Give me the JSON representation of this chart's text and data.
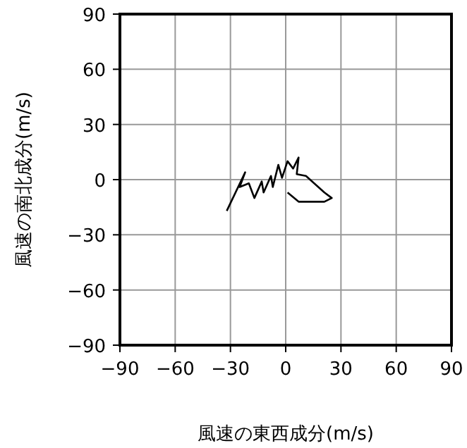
{
  "chart_data": {
    "type": "line",
    "xlabel": "風速の東西成分(m/s)",
    "ylabel": "風速の南北成分(m/s)",
    "xlim": [
      -90,
      90
    ],
    "ylim": [
      -90,
      90
    ],
    "grid": true,
    "color": "#000000",
    "xticks": [
      {
        "value": -90,
        "label": "−90"
      },
      {
        "value": -60,
        "label": "−60"
      },
      {
        "value": -30,
        "label": "−30"
      },
      0,
      30,
      60,
      90
    ],
    "yticks": [
      {
        "value": -90,
        "label": "−90"
      },
      {
        "value": -60,
        "label": "−60"
      },
      {
        "value": -30,
        "label": "−30"
      },
      0,
      30,
      60,
      90
    ],
    "x": [
      -32,
      -22,
      -25,
      -20,
      -17,
      -13,
      -12,
      -8,
      -7,
      -4,
      -2,
      1,
      4,
      7,
      6,
      11,
      21,
      25,
      21,
      7,
      1
    ],
    "values": [
      -17,
      4,
      -4,
      -2,
      -10,
      -1,
      -7,
      2,
      -4,
      8,
      1,
      10,
      6,
      12,
      3,
      2,
      -7,
      -10,
      -12,
      -12,
      -7
    ]
  }
}
